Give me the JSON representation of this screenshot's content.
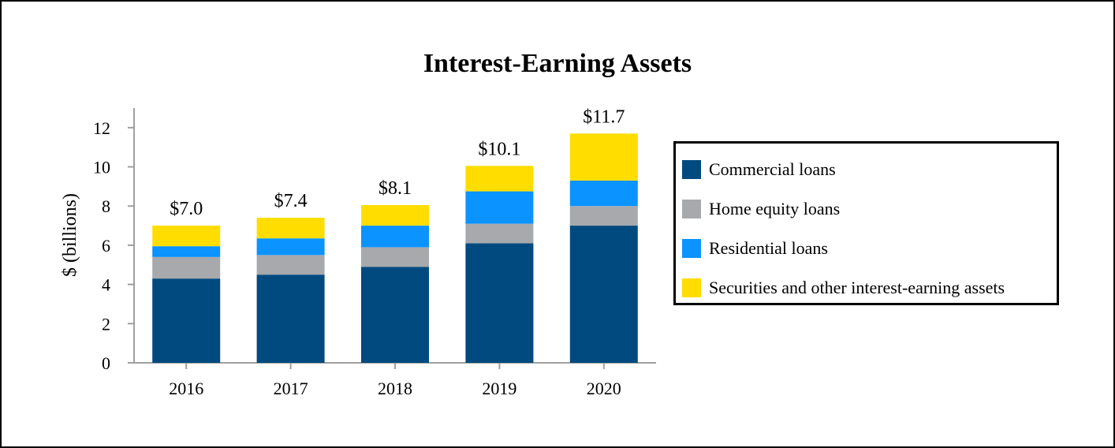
{
  "chart_data": {
    "type": "bar",
    "stacked": true,
    "title": "Interest-Earning Assets",
    "xlabel": "",
    "ylabel": "$ (billions)",
    "ylim": [
      0,
      13
    ],
    "yticks": [
      0,
      2,
      4,
      6,
      8,
      10,
      12
    ],
    "categories": [
      "2016",
      "2017",
      "2018",
      "2019",
      "2020"
    ],
    "totals_labels": [
      "$7.0",
      "$7.4",
      "$8.1",
      "$10.1",
      "$11.7"
    ],
    "series": [
      {
        "name": "Commercial loans",
        "color": "#004a7f",
        "values": [
          4.3,
          4.5,
          4.9,
          6.1,
          7.0
        ]
      },
      {
        "name": "Home equity loans",
        "color": "#a7a9ac",
        "values": [
          1.1,
          1.0,
          1.0,
          1.0,
          1.0
        ]
      },
      {
        "name": "Residential loans",
        "color": "#0b93ff",
        "values": [
          0.55,
          0.85,
          1.1,
          1.65,
          1.3
        ]
      },
      {
        "name": "Securities and other interest-earning assets",
        "color": "#ffdd00",
        "values": [
          1.05,
          1.05,
          1.05,
          1.3,
          2.4
        ]
      }
    ],
    "legend_position": "right",
    "grid": false
  }
}
